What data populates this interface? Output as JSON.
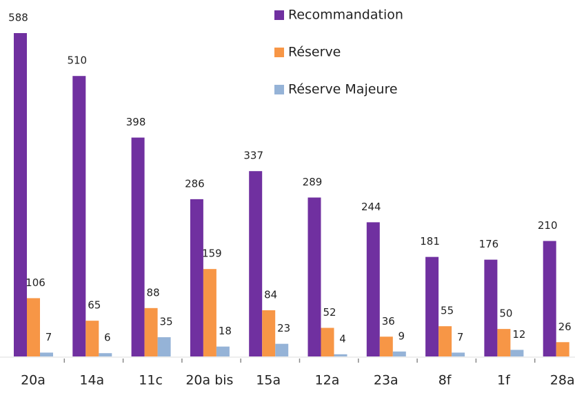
{
  "chart_data": {
    "type": "bar",
    "categories": [
      "20a",
      "14a",
      "11c",
      "20a bis",
      "15a",
      "12a",
      "23a",
      "8f",
      "1f",
      "28a"
    ],
    "series": [
      {
        "name": "Recommandation",
        "color": "#7030a0",
        "values": [
          588,
          510,
          398,
          286,
          337,
          289,
          244,
          181,
          176,
          210
        ]
      },
      {
        "name": "Réserve",
        "color": "#f79646",
        "values": [
          106,
          65,
          88,
          159,
          84,
          52,
          36,
          55,
          50,
          26
        ]
      },
      {
        "name": "Réserve Majeure",
        "color": "#95b3d7",
        "values": [
          7,
          6,
          35,
          18,
          23,
          4,
          9,
          7,
          12,
          null
        ]
      }
    ]
  }
}
